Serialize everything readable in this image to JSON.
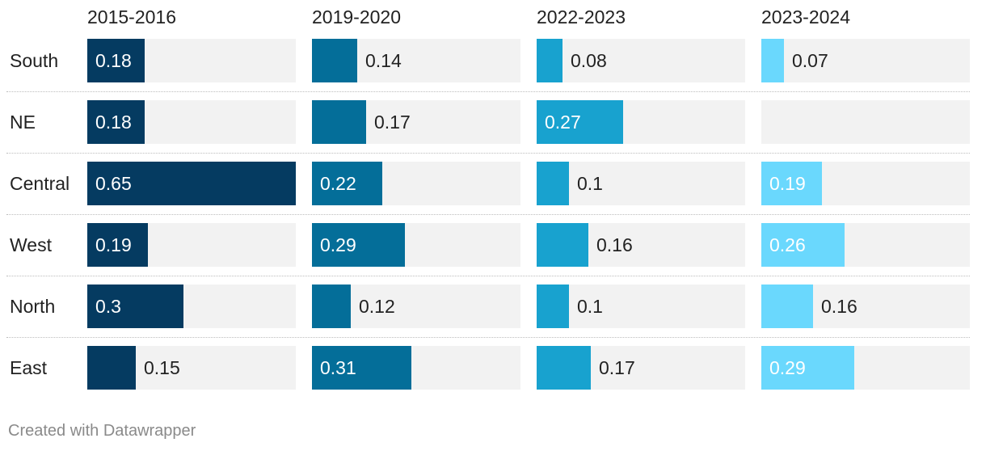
{
  "chart_data": {
    "type": "bar",
    "subtype": "small-multiples-horizontal",
    "categories": [
      "South",
      "NE",
      "Central",
      "West",
      "North",
      "East"
    ],
    "series": [
      {
        "name": "2015-2016",
        "color": "#053b61",
        "values": [
          0.18,
          0.18,
          0.65,
          0.19,
          0.3,
          0.15
        ]
      },
      {
        "name": "2019-2020",
        "color": "#046e99",
        "values": [
          0.14,
          0.17,
          0.22,
          0.29,
          0.12,
          0.31
        ]
      },
      {
        "name": "2022-2023",
        "color": "#18a2cf",
        "values": [
          0.08,
          0.27,
          0.1,
          0.16,
          0.1,
          0.17
        ]
      },
      {
        "name": "2023-2024",
        "color": "#6ad8fd",
        "values": [
          0.07,
          null,
          0.19,
          0.26,
          0.16,
          0.29
        ]
      }
    ],
    "xlim": [
      0,
      0.65
    ],
    "track_color": "#f2f2f2",
    "grid": false,
    "legend": "none"
  },
  "credit": "Created with Datawrapper"
}
